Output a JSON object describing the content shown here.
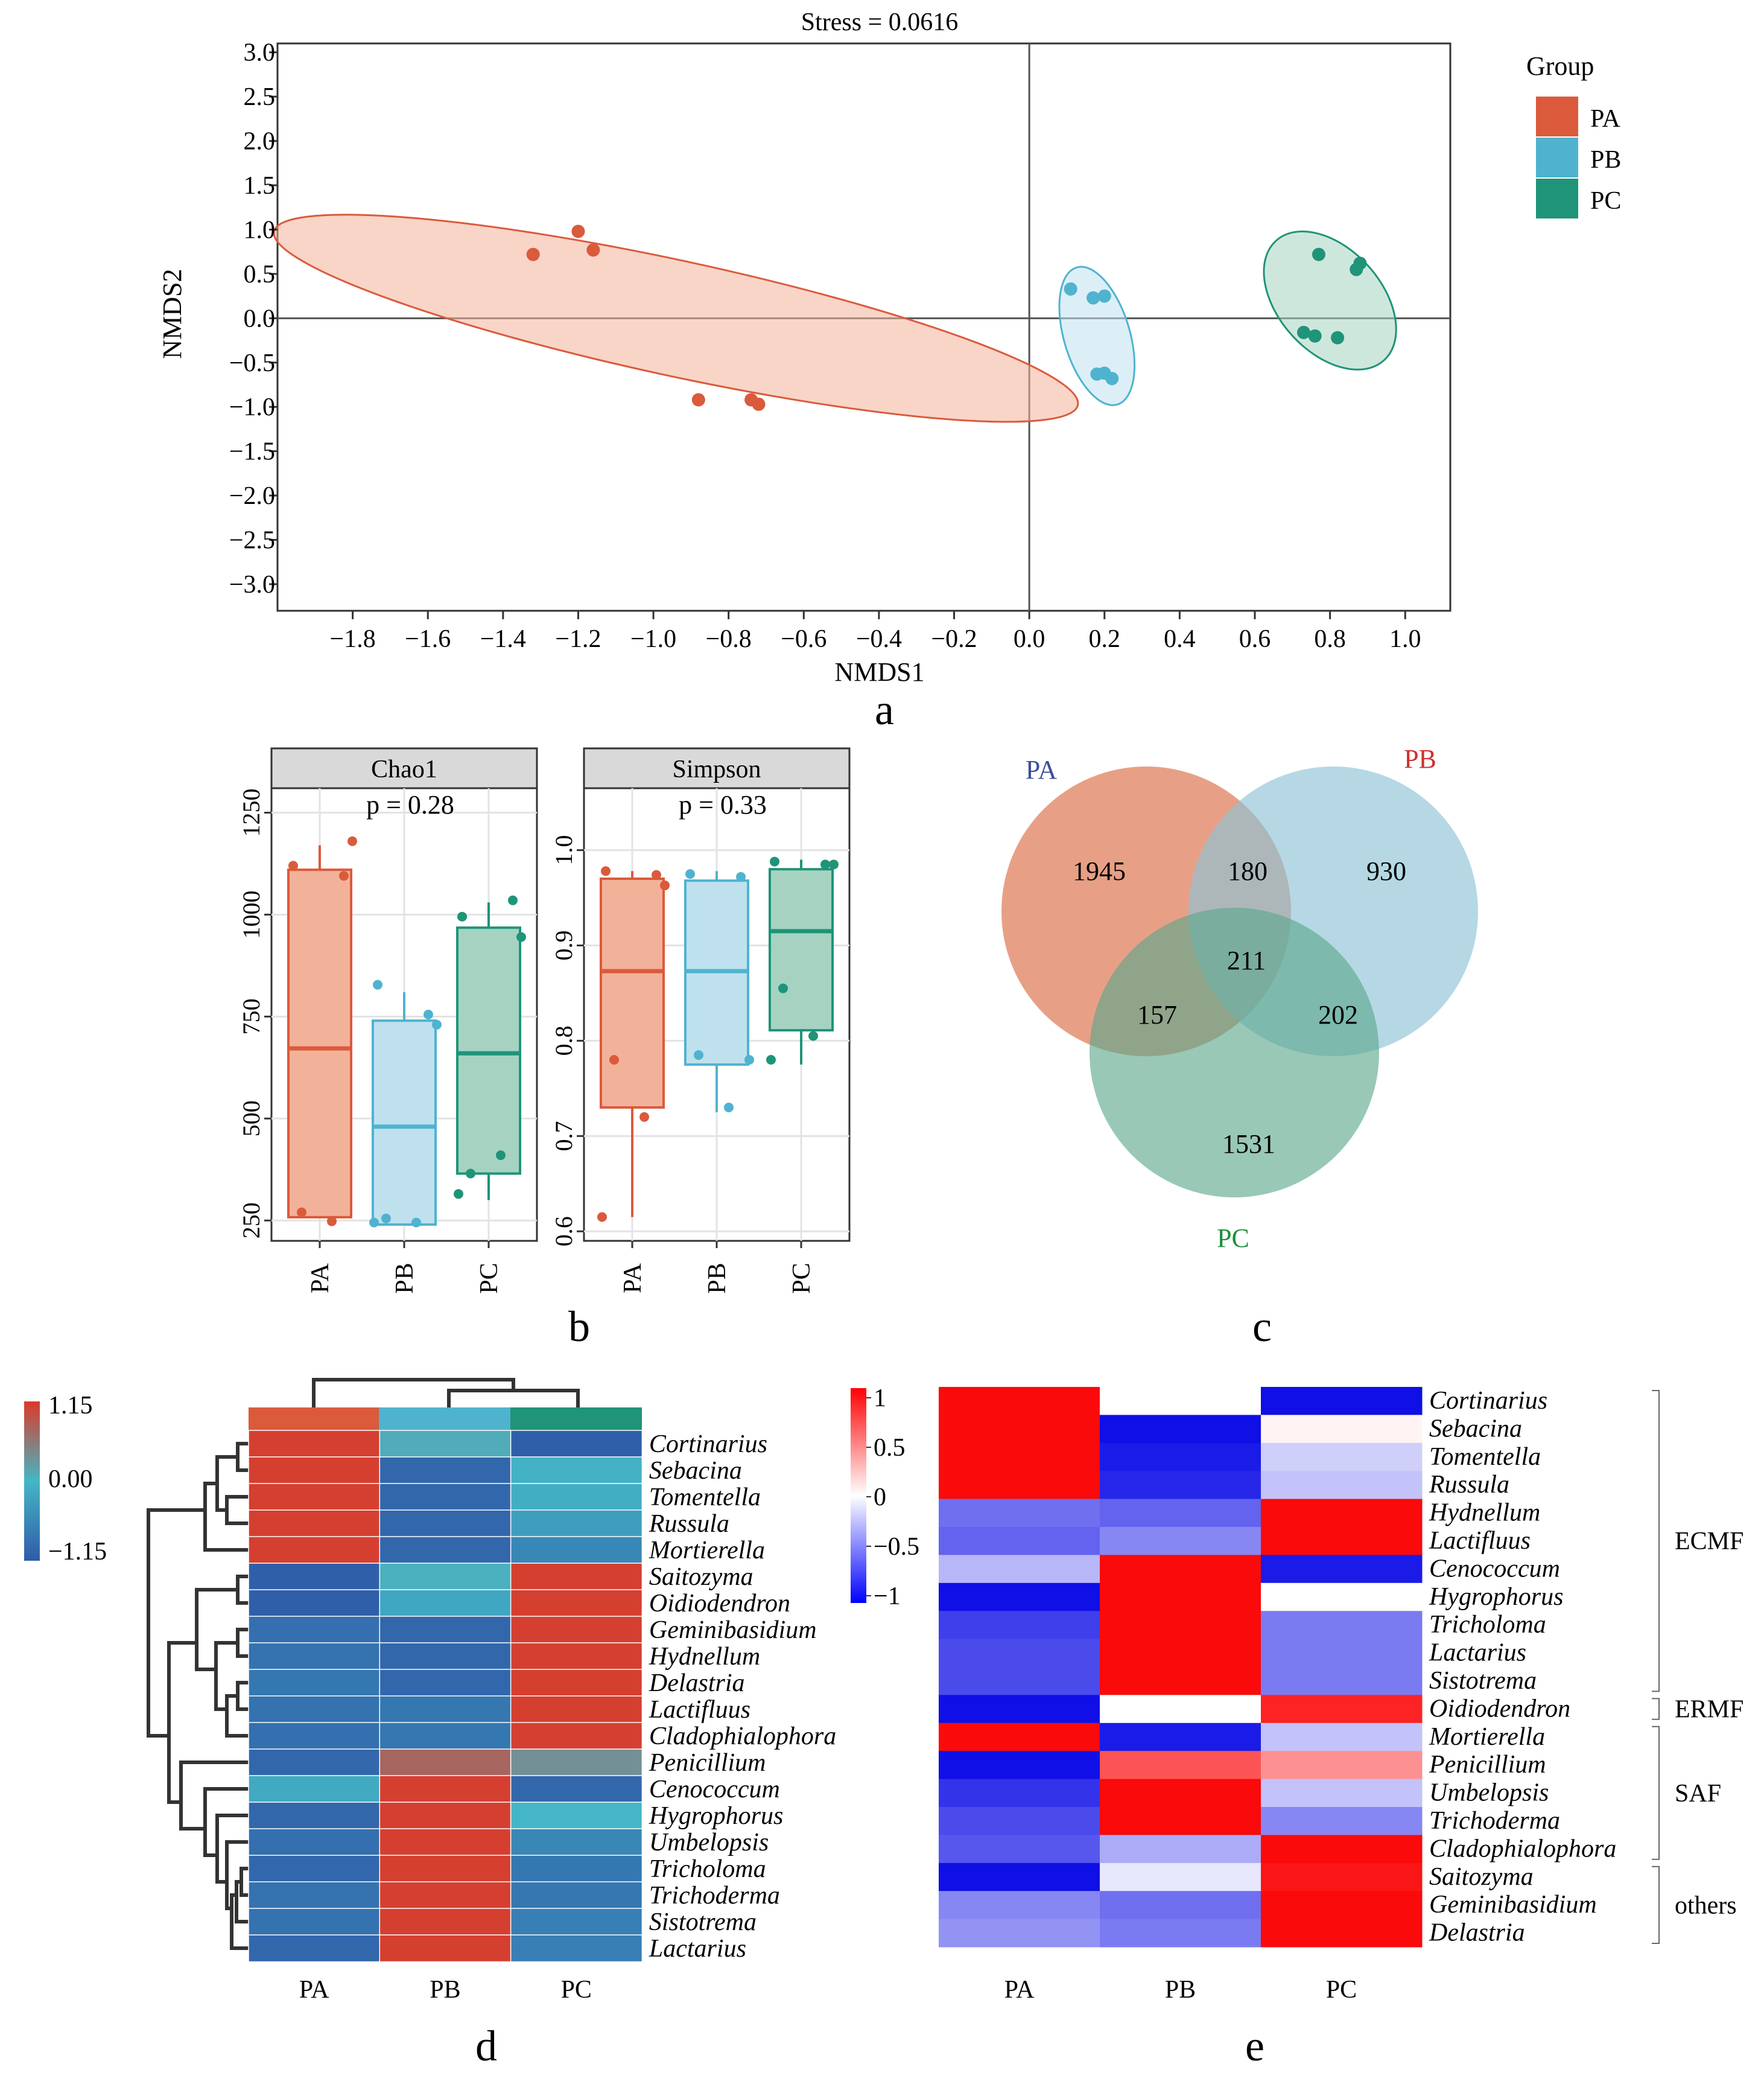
{
  "colors": {
    "PA": "#db5a3c",
    "PB": "#4fb3cf",
    "PC": "#1f9478",
    "PA_fill": "#f2b299",
    "PB_fill": "#bfe1ee",
    "PC_fill": "#a6d3c1",
    "venn_PA_label": "#3d4f9c",
    "venn_PB_label": "#d12f2f",
    "venn_PC_label": "#1d8f3c"
  },
  "chart_data": [
    {
      "type": "scatter",
      "panel_label": "a",
      "title": "Stress = 0.0616",
      "xlabel": "NMDS1",
      "ylabel": "NMDS2",
      "xlim": [
        -2.0,
        1.12
      ],
      "ylim": [
        -3.3,
        3.1
      ],
      "xticks": [
        "−1.8",
        "−1.6",
        "−1.4",
        "−1.2",
        "−1.0",
        "−0.8",
        "−0.6",
        "−0.4",
        "−0.2",
        "0.0",
        "0.2",
        "0.4",
        "0.6",
        "0.8",
        "1.0"
      ],
      "yticks": [
        "3.0",
        "2.5",
        "2.0",
        "1.5",
        "1.0",
        "0.5",
        "0.0",
        "−0.5",
        "−1.0",
        "−1.5",
        "−2.0",
        "−2.5",
        "−3.0"
      ],
      "legend_title": "Group",
      "series": [
        {
          "name": "PA",
          "points": [
            [
              -1.32,
              0.72
            ],
            [
              -1.2,
              0.98
            ],
            [
              -1.16,
              0.77
            ],
            [
              -0.88,
              -0.92
            ],
            [
              -0.74,
              -0.92
            ],
            [
              -0.72,
              -0.97
            ]
          ],
          "ellipse": {
            "cx": -0.94,
            "cy": 0.0,
            "rx": 2.9,
            "ry": 0.22,
            "angle_deg": -42.5
          }
        },
        {
          "name": "PB",
          "points": [
            [
              0.11,
              0.33
            ],
            [
              0.17,
              0.23
            ],
            [
              0.2,
              0.25
            ],
            [
              0.18,
              -0.63
            ],
            [
              0.2,
              -0.62
            ],
            [
              0.22,
              -0.68
            ]
          ],
          "ellipse": {
            "cx": 0.18,
            "cy": -0.2,
            "rx": 1.55,
            "ry": 0.088,
            "angle_deg": -86
          }
        },
        {
          "name": "PC",
          "points": [
            [
              0.73,
              -0.16
            ],
            [
              0.76,
              -0.2
            ],
            [
              0.77,
              0.72
            ],
            [
              0.82,
              -0.22
            ],
            [
              0.87,
              0.55
            ],
            [
              0.88,
              0.62
            ]
          ],
          "ellipse": {
            "cx": 0.8,
            "cy": 0.2,
            "rx": 1.38,
            "ry": 0.14,
            "angle_deg": -78
          }
        }
      ]
    },
    {
      "type": "box",
      "panel_label": "b",
      "facet": "Chao1",
      "annotation": "p = 0.28",
      "categories": [
        "PA",
        "PB",
        "PC"
      ],
      "ylim": [
        200,
        1310
      ],
      "yticks": [
        250,
        500,
        750,
        1000,
        1250
      ],
      "boxes": [
        {
          "name": "PA",
          "q1": 258,
          "median": 672,
          "q3": 1110,
          "lo": 258,
          "hi": 1170,
          "points": [
            1120,
            1095,
            1180,
            270,
            248
          ]
        },
        {
          "name": "PB",
          "q1": 240,
          "median": 480,
          "q3": 740,
          "lo": 240,
          "hi": 810,
          "points": [
            828,
            755,
            730,
            255,
            245,
            245
          ]
        },
        {
          "name": "PC",
          "q1": 365,
          "median": 660,
          "q3": 968,
          "lo": 300,
          "hi": 1030,
          "points": [
            995,
            1035,
            945,
            365,
            410,
            315
          ]
        }
      ]
    },
    {
      "type": "box",
      "panel_label": "b",
      "facet": "Simpson",
      "annotation": "p = 0.33",
      "categories": [
        "PA",
        "PB",
        "PC"
      ],
      "ylim": [
        0.59,
        1.065
      ],
      "yticks": [
        0.6,
        0.7,
        0.8,
        0.9,
        1.0
      ],
      "ytick_labels": [
        "0.6",
        "0.7",
        "0.8",
        "0.9",
        "1.0"
      ],
      "boxes": [
        {
          "name": "PA",
          "q1": 0.73,
          "median": 0.873,
          "q3": 0.97,
          "lo": 0.615,
          "hi": 0.978,
          "points": [
            0.978,
            0.974,
            0.963,
            0.78,
            0.72,
            0.615
          ]
        },
        {
          "name": "PB",
          "q1": 0.775,
          "median": 0.873,
          "q3": 0.968,
          "lo": 0.725,
          "hi": 0.978,
          "points": [
            0.975,
            0.972,
            0.78,
            0.785,
            0.73
          ]
        },
        {
          "name": "PC",
          "q1": 0.811,
          "median": 0.915,
          "q3": 0.98,
          "lo": 0.775,
          "hi": 0.99,
          "points": [
            0.988,
            0.985,
            0.985,
            0.855,
            0.805,
            0.78
          ]
        }
      ]
    },
    {
      "type": "venn",
      "panel_label": "c",
      "sets": [
        "PA",
        "PB",
        "PC"
      ],
      "regions": {
        "PA_only": 1945,
        "PB_only": 930,
        "PC_only": 1531,
        "PA_PB": 180,
        "PA_PC": 157,
        "PB_PC": 202,
        "all": 211
      }
    },
    {
      "type": "heatmap",
      "panel_label": "d",
      "columns": [
        "PA",
        "PB",
        "PC"
      ],
      "colorbar": {
        "max": "1.15",
        "mid": "0.00",
        "min": "−1.15",
        "range": [
          -1.15,
          1.15
        ]
      },
      "rows": [
        "Cortinarius",
        "Sebacina",
        "Tomentella",
        "Russula",
        "Mortierella",
        "Saitozyma",
        "Oidiodendron",
        "Geminibasidium",
        "Hydnellum",
        "Delastria",
        "Lactifluus",
        "Cladophialophora",
        "Penicillium",
        "Cenococcum",
        "Hygrophorus",
        "Umbelopsis",
        "Tricholoma",
        "Trichoderma",
        "Sistotrema",
        "Lactarius"
      ],
      "values": [
        [
          1.1,
          0.1,
          -1.1
        ],
        [
          1.1,
          -1.0,
          -0.05
        ],
        [
          1.1,
          -1.0,
          -0.1
        ],
        [
          1.1,
          -1.0,
          -0.3
        ],
        [
          1.1,
          -1.0,
          -0.6
        ],
        [
          -1.1,
          0.05,
          1.1
        ],
        [
          -1.1,
          -0.2,
          1.1
        ],
        [
          -0.9,
          -1.0,
          1.1
        ],
        [
          -0.85,
          -1.0,
          1.1
        ],
        [
          -0.8,
          -1.0,
          1.1
        ],
        [
          -0.85,
          -0.8,
          1.1
        ],
        [
          -0.9,
          -0.8,
          1.1
        ],
        [
          -1.0,
          0.75,
          0.35
        ],
        [
          -0.15,
          1.1,
          -1.0
        ],
        [
          -1.0,
          1.1,
          0.0
        ],
        [
          -0.9,
          1.1,
          -0.6
        ],
        [
          -1.0,
          1.1,
          -0.8
        ],
        [
          -0.85,
          1.1,
          -0.8
        ],
        [
          -0.85,
          1.1,
          -0.7
        ],
        [
          -1.0,
          1.1,
          -0.7
        ]
      ]
    },
    {
      "type": "heatmap",
      "panel_label": "e",
      "columns": [
        "PA",
        "PB",
        "PC"
      ],
      "colorbar": {
        "ticks": [
          "1",
          "0.5",
          "0",
          "−0.5",
          "−1"
        ],
        "range": [
          -1,
          1
        ]
      },
      "rows": [
        "Cortinarius",
        "Sebacina",
        "Tomentella",
        "Russula",
        "Hydnellum",
        "Lactifluus",
        "Cenococcum",
        "Hygrophorus",
        "Tricholoma",
        "Lactarius",
        "Sistotrema",
        "Oidiodendron",
        "Mortierella",
        "Penicillium",
        "Umbelopsis",
        "Trichoderma",
        "Cladophialophora",
        "Saitozyma",
        "Geminibasidium",
        "Delastria"
      ],
      "values": [
        [
          1.0,
          0.0,
          -1.0
        ],
        [
          1.0,
          -1.0,
          0.05
        ],
        [
          1.0,
          -0.95,
          -0.2
        ],
        [
          1.0,
          -0.9,
          -0.25
        ],
        [
          -0.6,
          -0.65,
          1.0
        ],
        [
          -0.65,
          -0.5,
          1.0
        ],
        [
          -0.3,
          1.0,
          -0.95
        ],
        [
          -1.0,
          1.0,
          0.0
        ],
        [
          -0.8,
          1.0,
          -0.55
        ],
        [
          -0.75,
          1.0,
          -0.55
        ],
        [
          -0.75,
          1.0,
          -0.55
        ],
        [
          -1.0,
          0.0,
          0.9
        ],
        [
          1.0,
          -0.95,
          -0.25
        ],
        [
          -1.0,
          0.7,
          0.45
        ],
        [
          -0.85,
          1.0,
          -0.25
        ],
        [
          -0.75,
          1.0,
          -0.5
        ],
        [
          -0.7,
          -0.35,
          1.0
        ],
        [
          -1.0,
          -0.1,
          0.95
        ],
        [
          -0.5,
          -0.6,
          1.0
        ],
        [
          -0.45,
          -0.55,
          1.0
        ]
      ],
      "groups": [
        {
          "label": "ECMF",
          "from": 0,
          "to": 10
        },
        {
          "label": "ERMF",
          "from": 11,
          "to": 11
        },
        {
          "label": "SAF",
          "from": 12,
          "to": 16
        },
        {
          "label": "others",
          "from": 17,
          "to": 19
        }
      ]
    }
  ]
}
